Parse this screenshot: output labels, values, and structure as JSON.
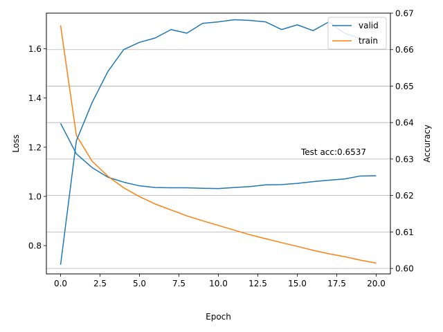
{
  "chart_data": {
    "type": "line",
    "xlabel": "Epoch",
    "ylabel_left": "Loss",
    "ylabel_right": "Accuracy",
    "annotation": "Test acc:0.6537",
    "xlim": [
      -0.9,
      20.9
    ],
    "ylim_left": [
      0.685,
      1.745
    ],
    "ylim_right": [
      0.5985,
      0.67
    ],
    "x_ticks": [
      0.0,
      2.5,
      5.0,
      7.5,
      10.0,
      12.5,
      15.0,
      17.5,
      20.0
    ],
    "x_tick_labels": [
      "0.0",
      "2.5",
      "5.0",
      "7.5",
      "10.0",
      "12.5",
      "15.0",
      "17.5",
      "20.0"
    ],
    "left_ticks": [
      0.8,
      1.0,
      1.2,
      1.4,
      1.6
    ],
    "left_tick_labels": [
      "0.8",
      "1.0",
      "1.2",
      "1.4",
      "1.6"
    ],
    "right_ticks": [
      0.6,
      0.61,
      0.62,
      0.63,
      0.64,
      0.65,
      0.66,
      0.67
    ],
    "right_tick_labels": [
      "0.60",
      "0.61",
      "0.62",
      "0.63",
      "0.64",
      "0.65",
      "0.66",
      "0.67"
    ],
    "grid": "horizontal, right axis",
    "legend_placement": "top-right",
    "x": [
      0,
      1,
      2,
      3,
      4,
      5,
      6,
      7,
      8,
      9,
      10,
      11,
      12,
      13,
      14,
      15,
      16,
      17,
      18,
      19,
      20
    ],
    "series": [
      {
        "name": "valid",
        "color": "#1f77b4",
        "values": [
          1.297,
          1.173,
          1.117,
          1.078,
          1.058,
          1.043,
          1.036,
          1.035,
          1.035,
          1.033,
          1.032,
          1.036,
          1.04,
          1.047,
          1.048,
          1.053,
          1.06,
          1.066,
          1.071,
          1.083,
          1.084
        ]
      },
      {
        "name": "train",
        "color": "#ff7f0e",
        "values": [
          1.695,
          1.248,
          1.143,
          1.082,
          1.035,
          0.999,
          0.969,
          0.945,
          0.921,
          0.901,
          0.882,
          0.863,
          0.844,
          0.828,
          0.812,
          0.797,
          0.781,
          0.767,
          0.755,
          0.741,
          0.729
        ]
      },
      {
        "name": "",
        "axis": "right",
        "color": "#1f77b4",
        "values": [
          0.601,
          0.635,
          0.6455,
          0.654,
          0.66,
          0.662,
          0.6632,
          0.6655,
          0.6645,
          0.6672,
          0.6676,
          0.6682,
          0.668,
          0.6676,
          0.6655,
          0.6668,
          0.6652,
          0.6676,
          0.6645,
          0.663,
          0.6632
        ]
      }
    ]
  }
}
